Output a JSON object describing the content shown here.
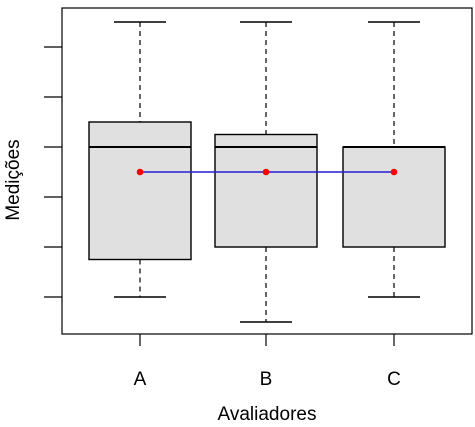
{
  "chart_data": {
    "type": "boxplot",
    "title": "",
    "xlabel": "Avaliadores",
    "ylabel": "Medições",
    "categories": [
      "A",
      "B",
      "C"
    ],
    "y_tick_labels_visible": false,
    "ylim": [
      -0.5,
      5.8
    ],
    "y_ticks": [
      0,
      1,
      2,
      3,
      4,
      5
    ],
    "boxes": [
      {
        "name": "A",
        "whisker_low": 0,
        "q1": 0.75,
        "median": 3,
        "q3": 3.5,
        "whisker_high": 5.5
      },
      {
        "name": "B",
        "whisker_low": -0.5,
        "q1": 1,
        "median": 3,
        "q3": 3.25,
        "whisker_high": 5.5
      },
      {
        "name": "C",
        "whisker_low": 0,
        "q1": 1,
        "median": 3,
        "q3": 3,
        "whisker_high": 5.5
      }
    ],
    "means": [
      2.5,
      2.5,
      2.5
    ],
    "colors": {
      "box_fill": "#e0e0e0",
      "mean_line": "#1f1fd6",
      "mean_point": "#ff0000",
      "axis": "#000000"
    }
  }
}
